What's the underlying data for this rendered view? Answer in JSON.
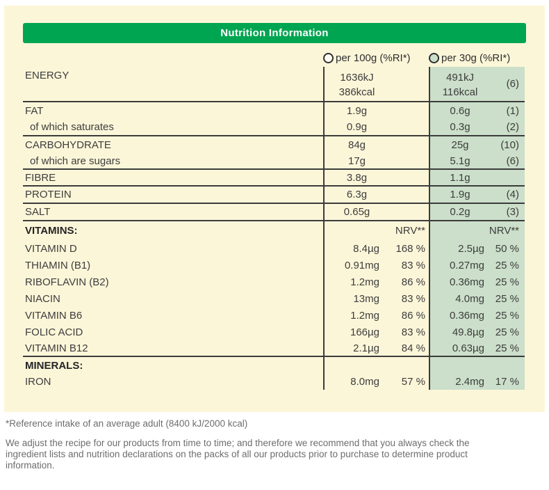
{
  "colors": {
    "green": "#00a551",
    "cream": "#fcf6d9",
    "lgreen": "#cbdfca",
    "line": "#3b3b3b",
    "text": "#3d3d3c",
    "muted": "#6d6d6d"
  },
  "title": "Nutrition Information",
  "columns": {
    "per100": {
      "label": "per 100g (%RI*)",
      "circle_icon": "radio-circle-cream"
    },
    "per30": {
      "label": "per 30g (%RI*)",
      "circle_icon": "radio-circle-green"
    }
  },
  "table": {
    "rows": [
      {
        "name": "ENERGY",
        "v100": "1636kJ",
        "v100b": "386kcal",
        "v30": "491kJ",
        "v30b": "116kcal",
        "ri30": "(6)"
      },
      {
        "name": "FAT",
        "v100": "1.9g",
        "v30": "0.6g",
        "ri30": "(1)"
      },
      {
        "name": "of which saturates",
        "v100": "0.9g",
        "v30": "0.3g",
        "ri30": "(2)"
      },
      {
        "name": "CARBOHYDRATE",
        "v100": "84g",
        "v30": "25g",
        "ri30": "(10)"
      },
      {
        "name": "of which are sugars",
        "v100": "17g",
        "v30": "5.1g",
        "ri30": "(6)"
      },
      {
        "name": "FIBRE",
        "v100": "3.8g",
        "v30": "1.1g",
        "ri30": ""
      },
      {
        "name": "PROTEIN",
        "v100": "6.3g",
        "v30": "1.9g",
        "ri30": "(4)"
      },
      {
        "name": "SALT",
        "v100": "0.65g",
        "v30": "0.2g",
        "ri30": "(3)"
      }
    ],
    "vitamins_header": {
      "label": "VITAMINS:",
      "nrv100": "NRV**",
      "nrv30": "NRV**"
    },
    "vitamins": [
      {
        "name": "VITAMIN D",
        "v100": "8.4µg",
        "p100": "168 %",
        "v30": "2.5µg",
        "p30": "50 %"
      },
      {
        "name": "THIAMIN (B1)",
        "v100": "0.91mg",
        "p100": "83 %",
        "v30": "0.27mg",
        "p30": "25 %"
      },
      {
        "name": "RIBOFLAVIN (B2)",
        "v100": "1.2mg",
        "p100": "86 %",
        "v30": "0.36mg",
        "p30": "25 %"
      },
      {
        "name": "NIACIN",
        "v100": "13mg",
        "p100": "83 %",
        "v30": "4.0mg",
        "p30": "25 %"
      },
      {
        "name": "VITAMIN B6",
        "v100": "1.2mg",
        "p100": "86 %",
        "v30": "0.36mg",
        "p30": "25 %"
      },
      {
        "name": "FOLIC ACID",
        "v100": "166µg",
        "p100": "83 %",
        "v30": "49.8µg",
        "p30": "25 %"
      },
      {
        "name": "VITAMIN B12",
        "v100": "2.1µg",
        "p100": "84 %",
        "v30": "0.63µg",
        "p30": "25 %"
      }
    ],
    "minerals_header": {
      "label": "MINERALS:"
    },
    "minerals": [
      {
        "name": "IRON",
        "v100": "8.0mg",
        "p100": "57 %",
        "v30": "2.4mg",
        "p30": "17 %"
      }
    ]
  },
  "footnotes": {
    "reference": "*Reference intake of an average adult (8400 kJ/2000 kcal)",
    "disclaimer": "We adjust the recipe for our products from time to time; and therefore we recommend that you always check the ingredient lists and nutrition declarations on the packs of all our products prior to purchase to determine product information."
  }
}
